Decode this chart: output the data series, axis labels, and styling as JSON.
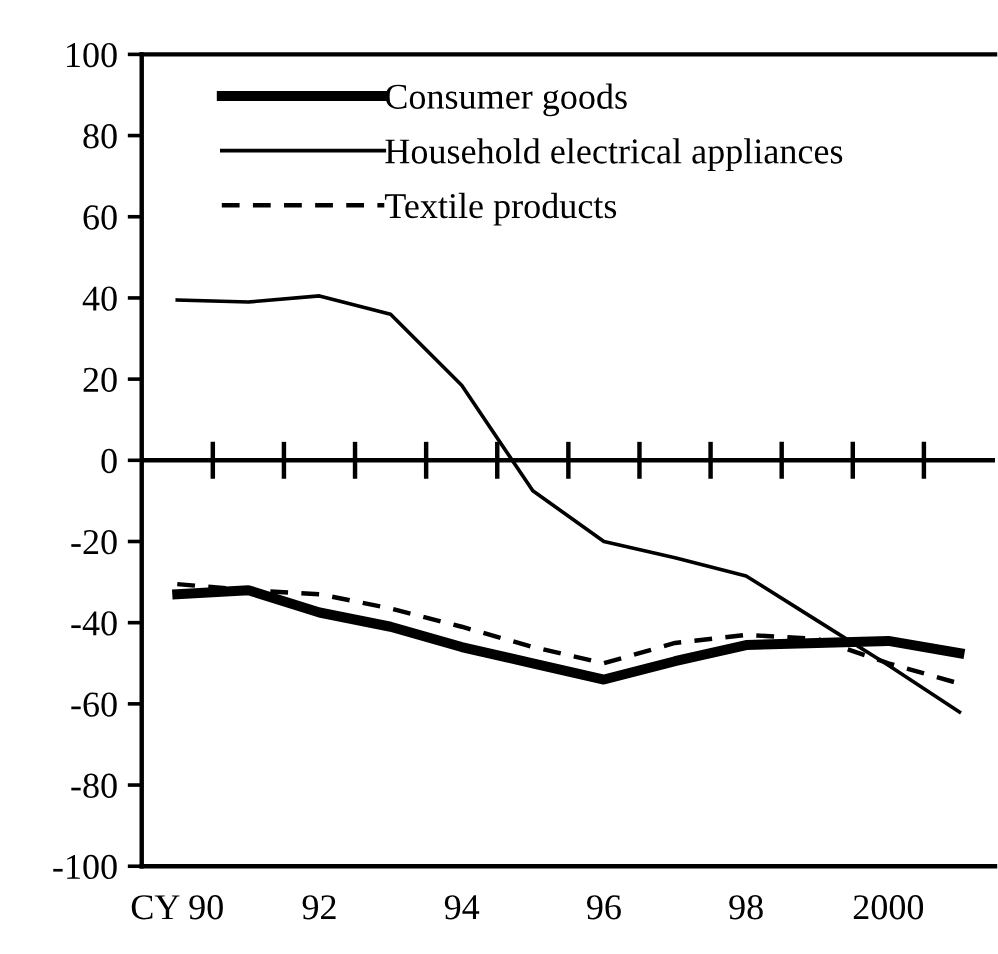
{
  "chart_data": {
    "type": "line",
    "categories": [
      "CY 90",
      null,
      "92",
      null,
      "94",
      null,
      "96",
      null,
      "98",
      null,
      "2000",
      null
    ],
    "series": [
      {
        "name": "Consumer goods",
        "color": "#000000",
        "line_style": "solid",
        "values": [
          -33,
          -32,
          -37.5,
          -41,
          -46,
          -50,
          -54,
          -49.5,
          -45.5,
          -45,
          -44.5,
          -47.5
        ]
      },
      {
        "name": "Household electrical appliances",
        "color": "#000000",
        "line_style": "solid",
        "values": [
          39.5,
          39,
          40.5,
          36,
          18.5,
          -7.5,
          -20,
          -24,
          -28.5,
          -39.5,
          -50.5,
          -62
        ]
      },
      {
        "name": "Textile products",
        "color": "#000000",
        "line_style": "dashed",
        "values": [
          -30.5,
          -32,
          -33,
          -36.5,
          -41,
          -46,
          -50,
          -45,
          -43,
          -44,
          -50,
          -55
        ]
      }
    ],
    "ylim": [
      -100,
      100
    ],
    "yticks": [
      -100,
      -80,
      -60,
      -40,
      -20,
      0,
      20,
      40,
      60,
      80,
      100
    ],
    "ref_lines": [
      {
        "axis": "y",
        "value": 0,
        "color": "#000000",
        "line_style": "solid"
      }
    ],
    "grid": false,
    "legend": "top left",
    "marker": "none"
  }
}
